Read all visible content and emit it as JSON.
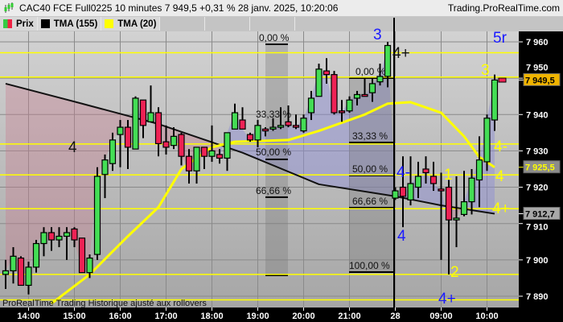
{
  "header": {
    "title": "CAC40 FCE Full0225 10 minutes 7 949,5 +0,31 % 28 janv. 2025, 10:20:06",
    "site": "Trading.ProRealTime.com",
    "legend": [
      {
        "label": "Prix",
        "colors": [
          "#33cc44",
          "#ee2244"
        ]
      },
      {
        "label": "TMA (155)",
        "colors": [
          "#000000"
        ]
      },
      {
        "label": "TMA (20)",
        "colors": [
          "#ffff00"
        ]
      }
    ]
  },
  "footer": "ProRealTime Trading  Historique ajusté aux rollovers",
  "colors": {
    "up": "#44dd55",
    "down": "#ee2255",
    "tma155": "#111111",
    "tma20": "#ffff00",
    "annotation_blue": "#1a1aff",
    "annotation_yellow": "#ffff00",
    "fib_line": "#ffff00"
  },
  "chart_data": {
    "type": "candlestick",
    "ylim": [
      7887,
      7963
    ],
    "y_ticks": [
      "7 960",
      "7 950",
      "7 940",
      "7 930",
      "7 920",
      "7 910",
      "7 900",
      "7 890"
    ],
    "y_tick_values": [
      7960,
      7950,
      7940,
      7930,
      7920,
      7910,
      7900,
      7890
    ],
    "x_ticks": [
      {
        "label": "14:00",
        "t": "14:00"
      },
      {
        "label": "15:00",
        "t": "15:00"
      },
      {
        "label": "16:00",
        "t": "16:00"
      },
      {
        "label": "17:00",
        "t": "17:00"
      },
      {
        "label": "18:00",
        "t": "18:00"
      },
      {
        "label": "19:00",
        "t": "19:00"
      },
      {
        "label": "20:00",
        "t": "20:00"
      },
      {
        "label": "21:00",
        "t": "21:00"
      },
      {
        "label": "28",
        "t": "08:00"
      },
      {
        "label": "09:00",
        "t": "09:00"
      },
      {
        "label": "10:00",
        "t": "10:00"
      }
    ],
    "candles_columns": [
      "time",
      "open",
      "high",
      "low",
      "close"
    ],
    "candles": [
      [
        "13:30",
        7896,
        7900,
        7892,
        7897
      ],
      [
        "13:40",
        7897,
        7903.5,
        7893.5,
        7901
      ],
      [
        "13:50",
        7900.5,
        7901,
        7893,
        7893
      ],
      [
        "14:00",
        7893,
        7899.5,
        7890.5,
        7898
      ],
      [
        "14:10",
        7898,
        7905.5,
        7896.5,
        7904.5
      ],
      [
        "14:20",
        7904.5,
        7909,
        7901,
        7907.5
      ],
      [
        "14:30",
        7907.5,
        7909,
        7902.5,
        7905.5
      ],
      [
        "14:40",
        7905.5,
        7909,
        7903.5,
        7906.5
      ],
      [
        "14:50",
        7906.5,
        7909,
        7900,
        7907.5
      ],
      [
        "15:00",
        7908.5,
        7909,
        7903.5,
        7905.5
      ],
      [
        "15:10",
        7906,
        7906,
        7896.5,
        7896.5
      ],
      [
        "15:20",
        7896.5,
        7901.5,
        7895,
        7900.5
      ],
      [
        "15:30",
        7901.5,
        7925.5,
        7900,
        7923
      ],
      [
        "15:40",
        7923.5,
        7929,
        7917,
        7927.5
      ],
      [
        "15:50",
        7926.5,
        7935,
        7924.5,
        7933
      ],
      [
        "16:00",
        7934.5,
        7938.5,
        7925.5,
        7936.5
      ],
      [
        "16:10",
        7936.5,
        7938.5,
        7925,
        7931
      ],
      [
        "16:20",
        7930.5,
        7945,
        7930.5,
        7944.5
      ],
      [
        "16:30",
        7944,
        7944,
        7933.5,
        7937
      ],
      [
        "16:40",
        7938,
        7948,
        7938,
        7940.5
      ],
      [
        "16:50",
        7940.5,
        7942,
        7928.5,
        7932
      ],
      [
        "17:00",
        7932.5,
        7937,
        7929,
        7931
      ],
      [
        "17:10",
        7931.5,
        7936.5,
        7930.5,
        7934
      ],
      [
        "17:20",
        7934.5,
        7935,
        7926,
        7928.5
      ],
      [
        "17:30",
        7928.5,
        7930.5,
        7921,
        7924.5
      ],
      [
        "17:40",
        7924.5,
        7931,
        7921,
        7931
      ],
      [
        "17:50",
        7931,
        7931,
        7925,
        7928.5
      ],
      [
        "18:00",
        7928.5,
        7937,
        7927,
        7930
      ],
      [
        "18:10",
        7929,
        7930.5,
        7926.5,
        7928
      ],
      [
        "18:20",
        7928,
        7935,
        7924.5,
        7935
      ],
      [
        "18:30",
        7936,
        7943,
        7936,
        7940.5
      ],
      [
        "18:40",
        7938.5,
        7942,
        7936,
        7936
      ],
      [
        "18:50",
        7934.5,
        7935,
        7932.5,
        7933
      ],
      [
        "19:00",
        7933,
        7938.5,
        7931,
        7937
      ],
      [
        "19:10",
        7936,
        7936.5,
        7934,
        7935.5
      ],
      [
        "19:20",
        7936,
        7939,
        7935.5,
        7936.5
      ],
      [
        "19:30",
        7936.5,
        7942,
        7936,
        7937
      ],
      [
        "19:40",
        7938,
        7942.5,
        7936.5,
        7937
      ],
      [
        "19:50",
        7937,
        7940,
        7936,
        7936.5
      ],
      [
        "20:00",
        7935.5,
        7940,
        7935,
        7939
      ],
      [
        "20:10",
        7940.5,
        7946.5,
        7938.5,
        7944.5
      ],
      [
        "20:20",
        7945,
        7954,
        7945,
        7952.5
      ],
      [
        "20:30",
        7952,
        7955.5,
        7948.5,
        7951
      ],
      [
        "20:40",
        7951,
        7952,
        7940,
        7940.5
      ],
      [
        "20:50",
        7941,
        7944,
        7938,
        7940.5
      ],
      [
        "21:00",
        7941,
        7945,
        7940.5,
        7944
      ],
      [
        "21:10",
        7944.5,
        7946.5,
        7942.5,
        7945.5
      ],
      [
        "21:20",
        7945.5,
        7950,
        7945,
        7945
      ],
      [
        "21:30",
        7946,
        7950,
        7943.5,
        7948.5
      ],
      [
        "21:40",
        7949,
        7954,
        7948,
        7950.5
      ],
      [
        "21:50",
        7950.5,
        7960,
        7947.5,
        7959
      ],
      [
        "08:00",
        7917,
        7920,
        7916.5,
        7919
      ],
      [
        "08:10",
        7920,
        7928.5,
        7909,
        7917.5
      ],
      [
        "08:20",
        7916.5,
        7928.5,
        7915,
        7921
      ],
      [
        "08:30",
        7920,
        7927,
        7917,
        7923
      ],
      [
        "08:40",
        7925,
        7928.5,
        7921,
        7924
      ],
      [
        "08:50",
        7923,
        7927,
        7919,
        7921
      ],
      [
        "09:00",
        7919.5,
        7924,
        7900,
        7919
      ],
      [
        "09:10",
        7920,
        7922,
        7896,
        7911
      ],
      [
        "09:20",
        7911,
        7923,
        7903.5,
        7911.5
      ],
      [
        "09:30",
        7912.5,
        7924.5,
        7912,
        7916
      ],
      [
        "09:40",
        7916,
        7925,
        7912.5,
        7922.5
      ],
      [
        "09:50",
        7922,
        7934,
        7914.5,
        7927.5
      ],
      [
        "10:00",
        7927,
        7940,
        7924.5,
        7939
      ],
      [
        "10:10",
        7938.5,
        7951,
        7935.5,
        7949.5
      ]
    ],
    "tma155": [
      [
        "13:30",
        7948.5
      ],
      [
        "15:10",
        7943
      ],
      [
        "16:50",
        7937.4
      ],
      [
        "18:40",
        7929.5
      ],
      [
        "20:20",
        7920.8
      ],
      [
        "08:00",
        7917.5
      ],
      [
        "09:00",
        7915
      ],
      [
        "10:10",
        7912.7
      ]
    ],
    "tma20": [
      [
        "14:30",
        7888
      ],
      [
        "15:20",
        7896
      ],
      [
        "16:10",
        7906.5
      ],
      [
        "16:50",
        7914.5
      ],
      [
        "17:20",
        7925
      ],
      [
        "18:00",
        7931
      ],
      [
        "18:30",
        7932.5
      ],
      [
        "19:40",
        7933
      ],
      [
        "20:20",
        7935.5
      ],
      [
        "21:20",
        7940
      ],
      [
        "21:50",
        7943
      ],
      [
        "08:20",
        7943.4
      ],
      [
        "09:00",
        7940.5
      ],
      [
        "09:30",
        7934
      ],
      [
        "09:50",
        7928.3
      ],
      [
        "10:10",
        7925.5
      ]
    ],
    "horizontal_lines": [
      7957,
      7950.3,
      7931.9,
      7923.4,
      7914.1,
      7896,
      7889
    ],
    "price_badges": [
      {
        "label": "7 949,5",
        "value": 7949.5,
        "bg": "#f0b400",
        "fg": "#000000"
      },
      {
        "label": "7 925,5",
        "value": 7925.5,
        "bg": "#8c8c8c",
        "fg": "#ffff00"
      },
      {
        "label": "7 912,7",
        "value": 7912.7,
        "bg": "#a8a8a8",
        "fg": "#000000"
      }
    ],
    "fib_left": [
      "0,00 %",
      "33,33 %",
      "50,00 %",
      "66,66 %"
    ],
    "fib_right": [
      "0,00 %",
      "33,33 %",
      "50,00 %",
      "66,66 %",
      "100,00 %"
    ],
    "annotations": [
      "4",
      "3",
      "4+",
      "5r",
      "3",
      "4-",
      "4",
      "4+",
      "4-",
      "4",
      "1",
      "2",
      "4+"
    ]
  }
}
